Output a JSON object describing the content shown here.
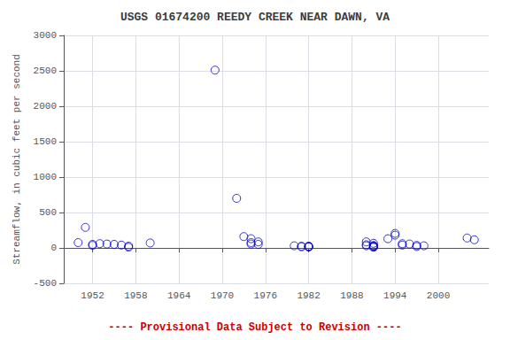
{
  "chart_data": {
    "type": "scatter",
    "title": "USGS 01674200 REEDY CREEK NEAR DAWN, VA",
    "ylabel": "Streamflow, in cubic feet per second",
    "annotation": "---- Provisional Data Subject to Revision ----",
    "x": [
      1950,
      1951,
      1952,
      1952,
      1953,
      1954,
      1955,
      1956,
      1957,
      1957,
      1960,
      1969,
      1972,
      1973,
      1974,
      1974,
      1974,
      1975,
      1975,
      1980,
      1981,
      1981,
      1982,
      1982,
      1982,
      1982,
      1990,
      1990,
      1990,
      1991,
      1991,
      1991,
      1991,
      1991,
      1991,
      1993,
      1994,
      1994,
      1995,
      1995,
      1996,
      1997,
      1997,
      1998,
      2004,
      2005
    ],
    "values": [
      75,
      290,
      50,
      35,
      60,
      55,
      50,
      40,
      25,
      10,
      70,
      2510,
      700,
      160,
      130,
      75,
      55,
      85,
      50,
      30,
      25,
      15,
      25,
      20,
      15,
      15,
      85,
      45,
      30,
      65,
      35,
      25,
      20,
      15,
      10,
      130,
      205,
      180,
      60,
      40,
      55,
      35,
      20,
      30,
      140,
      115
    ],
    "color": "#0000CC",
    "marker": "circle",
    "xlim": [
      1948,
      2007
    ],
    "xticks": [
      1952,
      1958,
      1964,
      1970,
      1976,
      1982,
      1988,
      1994,
      2000
    ],
    "ylim": [
      -500,
      3000
    ],
    "yticks": [
      -500,
      0,
      500,
      1000,
      1500,
      2000,
      2500,
      3000
    ],
    "grid": true
  }
}
